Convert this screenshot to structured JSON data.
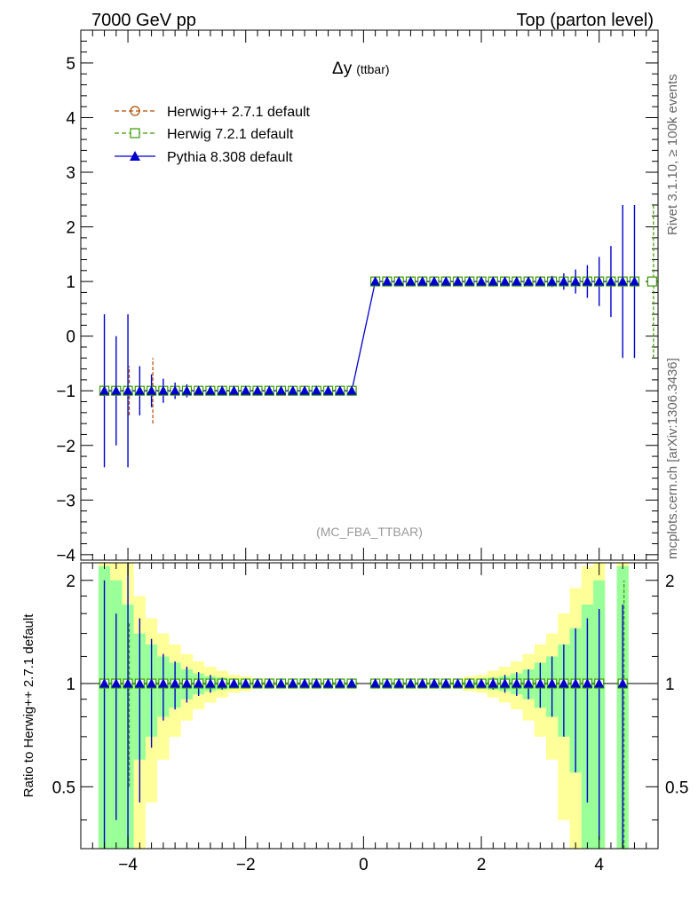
{
  "header": {
    "left": "7000 GeV pp",
    "right": "Top (parton level)"
  },
  "side": {
    "rivet": "Rivet 3.1.10, ≥ 100k events",
    "source": "mcplots.cern.ch [arXiv:1306.3436]"
  },
  "chart_data": [
    {
      "type": "line",
      "title": "Δy (ttbar)",
      "title_main": "Δy",
      "title_sub": "(ttbar)",
      "watermark": "(MC_FBA_TTBAR)",
      "xlim": [
        -4.8,
        5.0
      ],
      "ylim": [
        -4.1,
        5.6
      ],
      "yticks": [
        -4,
        -3,
        -2,
        -1,
        0,
        1,
        2,
        3,
        4,
        5
      ],
      "ytick_labels": [
        "−4",
        "−3",
        "−2",
        "−1",
        "0",
        "1",
        "2",
        "3",
        "4",
        "5"
      ],
      "legend_position": "top-left",
      "series": [
        {
          "name": "Herwig++ 2.7.1 default",
          "color": "#b34a00",
          "marker": "open-circle",
          "x": [
            -4.4,
            -4.0,
            -3.6
          ],
          "y": [
            -1,
            -1,
            -1
          ],
          "err": [
            0,
            0.45,
            0.6
          ]
        },
        {
          "name": "Herwig 7.2.1 default",
          "color": "#3a9a00",
          "marker": "open-square",
          "x": [
            -4.4,
            4.9
          ],
          "y": [
            -1,
            1
          ],
          "err": [
            0,
            1.4
          ]
        },
        {
          "name": "Pythia 8.308 default",
          "color": "#0000cc",
          "marker": "filled-triangle",
          "x": [
            -4.4,
            -4.2,
            -4.0,
            -3.8,
            -3.6,
            -3.4,
            -3.2,
            -3.0,
            -2.8,
            -2.6,
            -2.4,
            -2.2,
            -2.0,
            -1.8,
            -1.6,
            -1.4,
            -1.2,
            -1.0,
            -0.8,
            -0.6,
            -0.4,
            -0.2,
            0.2,
            0.4,
            0.6,
            0.8,
            1.0,
            1.2,
            1.4,
            1.6,
            1.8,
            2.0,
            2.2,
            2.4,
            2.6,
            2.8,
            3.0,
            3.2,
            3.4,
            3.6,
            3.8,
            4.0,
            4.2,
            4.4,
            4.6
          ],
          "y": [
            -1,
            -1,
            -1,
            -1,
            -1,
            -1,
            -1,
            -1,
            -1,
            -1,
            -1,
            -1,
            -1,
            -1,
            -1,
            -1,
            -1,
            -1,
            -1,
            -1,
            -1,
            -1,
            1,
            1,
            1,
            1,
            1,
            1,
            1,
            1,
            1,
            1,
            1,
            1,
            1,
            1,
            1,
            1,
            1,
            1,
            1,
            1,
            1,
            1,
            1
          ],
          "err": [
            1.4,
            1.0,
            1.4,
            0.45,
            0.3,
            0.22,
            0.15,
            0.12,
            0.08,
            0.06,
            0.04,
            0.03,
            0.02,
            0.01,
            0.01,
            0.01,
            0.01,
            0.01,
            0.01,
            0.01,
            0.01,
            0.01,
            0.01,
            0.01,
            0.01,
            0.01,
            0.01,
            0.01,
            0.01,
            0.01,
            0.01,
            0.01,
            0.02,
            0.03,
            0.04,
            0.06,
            0.08,
            0.1,
            0.15,
            0.22,
            0.3,
            0.45,
            0.65,
            1.4,
            1.4
          ]
        }
      ]
    },
    {
      "type": "line",
      "ylabel": "Ratio to Herwig++ 2.7.1 default",
      "xlim": [
        -4.8,
        5.0
      ],
      "ylim": [
        0.33,
        2.25
      ],
      "yscale": "log",
      "yticks": [
        0.5,
        1,
        2
      ],
      "ytick_labels": [
        "0.5",
        "1",
        "2"
      ],
      "xticks": [
        -4,
        -2,
        0,
        2,
        4
      ],
      "xtick_labels": [
        "−4",
        "−2",
        "0",
        "2",
        "4"
      ],
      "band": {
        "x": [
          -4.4,
          -4.2,
          -4.0,
          -3.8,
          -3.6,
          -3.4,
          -3.2,
          -3.0,
          -2.8,
          -2.6,
          -2.4,
          -2.2,
          -2.0,
          -1.8,
          -1.6,
          -1.4,
          -1.2,
          -1.0,
          -0.8,
          -0.6,
          -0.4,
          -0.2,
          0.2,
          0.4,
          0.6,
          0.8,
          1.0,
          1.2,
          1.4,
          1.6,
          1.8,
          2.0,
          2.2,
          2.4,
          2.6,
          2.8,
          3.0,
          3.2,
          3.4,
          3.6,
          3.8,
          4.0,
          4.2,
          4.4
        ],
        "green_half": [
          1.2,
          1.0,
          0.7,
          0.4,
          0.3,
          0.2,
          0.15,
          0.1,
          0.07,
          0.05,
          0.04,
          0.03,
          0.02,
          0.01,
          0.01,
          0.01,
          0.01,
          0.01,
          0.01,
          0.01,
          0.01,
          0.01,
          0.01,
          0.01,
          0.01,
          0.01,
          0.01,
          0.01,
          0.01,
          0.01,
          0.02,
          0.03,
          0.04,
          0.05,
          0.07,
          0.1,
          0.15,
          0.2,
          0.3,
          0.45,
          0.7,
          1.0,
          0,
          1.2
        ],
        "yellow_half": [
          1.5,
          1.5,
          1.3,
          0.8,
          0.55,
          0.4,
          0.3,
          0.22,
          0.16,
          0.12,
          0.09,
          0.06,
          0.05,
          0.03,
          0.02,
          0.02,
          0.01,
          0.01,
          0.01,
          0.01,
          0.01,
          0.01,
          0.01,
          0.01,
          0.01,
          0.01,
          0.01,
          0.02,
          0.02,
          0.03,
          0.05,
          0.06,
          0.09,
          0.12,
          0.16,
          0.22,
          0.3,
          0.4,
          0.6,
          0.9,
          1.2,
          1.5,
          0,
          1.6
        ]
      },
      "series": [
        {
          "name": "Pythia 8.308 default",
          "color": "#0000cc",
          "x": [
            -4.4,
            -4.2,
            -4.0,
            -3.8,
            -3.6,
            -3.4,
            -3.2,
            -3.0,
            -2.8,
            -2.6,
            -2.4,
            -2.2,
            -2.0,
            -1.8,
            -1.6,
            -1.4,
            -1.2,
            -1.0,
            -0.8,
            -0.6,
            -0.4,
            -0.2,
            0.2,
            0.4,
            0.6,
            0.8,
            1.0,
            1.2,
            1.4,
            1.6,
            1.8,
            2.0,
            2.2,
            2.4,
            2.6,
            2.8,
            3.0,
            3.2,
            3.4,
            3.6,
            3.8,
            4.0,
            4.4
          ],
          "y": [
            1,
            1,
            1,
            1,
            1,
            1,
            1,
            1,
            1,
            1,
            1,
            1,
            1,
            1,
            1,
            1,
            1,
            1,
            1,
            1,
            1,
            1,
            1,
            1,
            1,
            1,
            1,
            1,
            1,
            1,
            1,
            1,
            1,
            1,
            1,
            1,
            1,
            1,
            1,
            1,
            1,
            1,
            1
          ],
          "err": [
            1.0,
            0.6,
            1.25,
            0.55,
            0.35,
            0.22,
            0.16,
            0.12,
            0.08,
            0.06,
            0.04,
            0.03,
            0.02,
            0.01,
            0.01,
            0.01,
            0.01,
            0.01,
            0.01,
            0.01,
            0.01,
            0.01,
            0.01,
            0.01,
            0.01,
            0.01,
            0.01,
            0.01,
            0.01,
            0.01,
            0.02,
            0.03,
            0.04,
            0.06,
            0.08,
            0.1,
            0.15,
            0.2,
            0.3,
            0.45,
            0.55,
            0.65,
            0.7
          ]
        },
        {
          "name": "Herwig 7.2.1 default",
          "color": "#3a9a00",
          "x": [
            -4.4,
            -4.0,
            4.4
          ],
          "y": [
            1,
            1,
            1
          ],
          "err": [
            0,
            0.5,
            1.0
          ]
        }
      ]
    }
  ]
}
